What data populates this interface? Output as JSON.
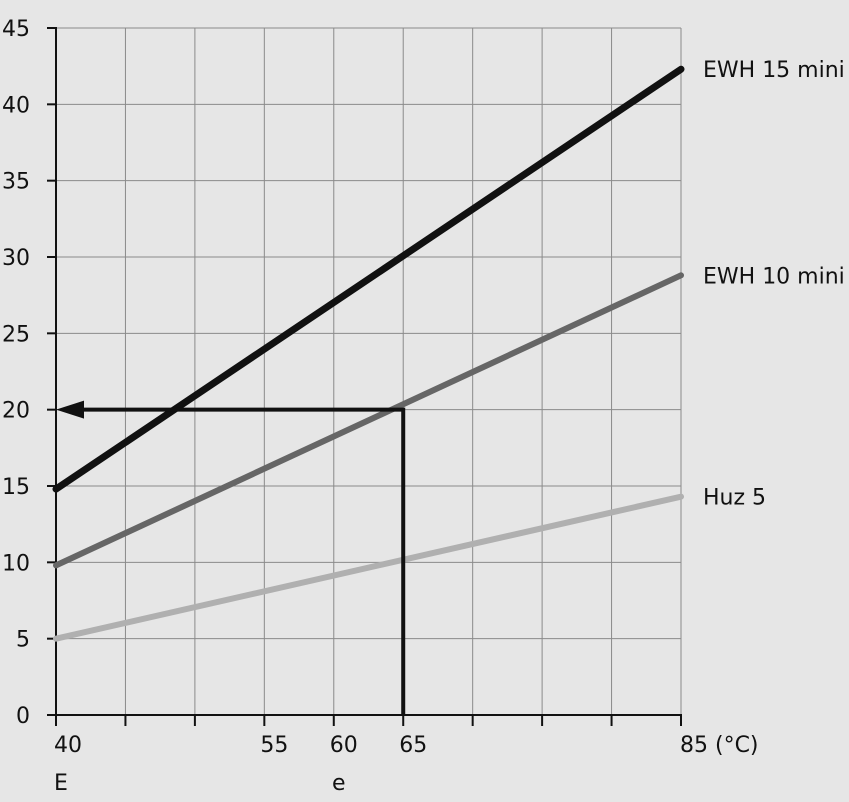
{
  "chart_data": {
    "type": "line",
    "xlim": [
      40,
      85
    ],
    "ylim": [
      0,
      45
    ],
    "x_gridlines": [
      40,
      45,
      50,
      55,
      60,
      65,
      70,
      75,
      80,
      85
    ],
    "y_gridlines": [
      0,
      5,
      10,
      15,
      20,
      25,
      30,
      35,
      40,
      45
    ],
    "x_tick_labels": [
      {
        "x": 40,
        "label": "40"
      },
      {
        "x": 55,
        "label": "55"
      },
      {
        "x": 60,
        "label": "60"
      },
      {
        "x": 65,
        "label": "65"
      },
      {
        "x": 85,
        "label": "85 (°C)"
      }
    ],
    "x_sub_labels": [
      {
        "x": 40,
        "label": "E"
      },
      {
        "x": 60,
        "label": "e"
      }
    ],
    "y_tick_labels": [
      "0",
      "5",
      "10",
      "15",
      "20",
      "25",
      "30",
      "35",
      "40",
      "45"
    ],
    "series": [
      {
        "name": "EWH 15 mini",
        "color": "#111111",
        "points": [
          [
            40,
            14.8
          ],
          [
            85,
            42.3
          ]
        ]
      },
      {
        "name": "EWH 10 mini",
        "color": "#666666",
        "points": [
          [
            40,
            9.8
          ],
          [
            85,
            28.8
          ]
        ]
      },
      {
        "name": "Huz 5",
        "color": "#b0b0b0",
        "points": [
          [
            40,
            5.0
          ],
          [
            85,
            14.3
          ]
        ]
      }
    ],
    "example_path": {
      "color": "#111111",
      "points": [
        [
          65,
          0
        ],
        [
          65,
          20
        ],
        [
          40,
          20
        ]
      ],
      "arrow_at_end": true
    },
    "grid": true
  }
}
